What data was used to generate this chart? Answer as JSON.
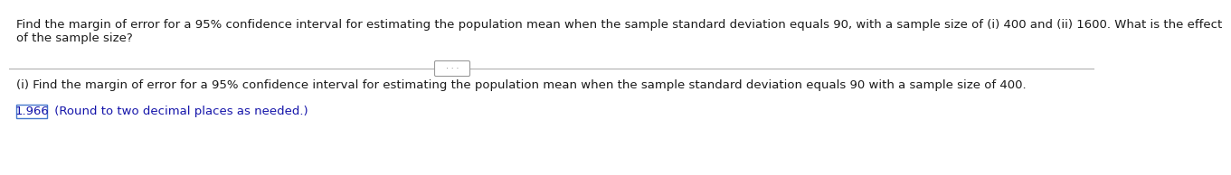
{
  "line1": "Find the margin of error for a 95% confidence interval for estimating the population mean when the sample standard deviation equals 90, with a sample size of (i) 400 and (ii) 1600. What is the effect",
  "line2": "of the sample size?",
  "sub_question": "(i) Find the margin of error for a 95% confidence interval for estimating the population mean when the sample standard deviation equals 90 with a sample size of 400.",
  "answer_value": "1.966",
  "answer_suffix": " (Round to two decimal places as needed.)",
  "text_color_black": "#1a1a1a",
  "text_color_blue": "#1515aa",
  "box_edge_color": "#4477cc",
  "bg_color": "#ffffff",
  "separator_color": "#b0b0b0",
  "dots_color": "#666666",
  "font_size_main": 9.5,
  "font_size_dots": 6.5
}
